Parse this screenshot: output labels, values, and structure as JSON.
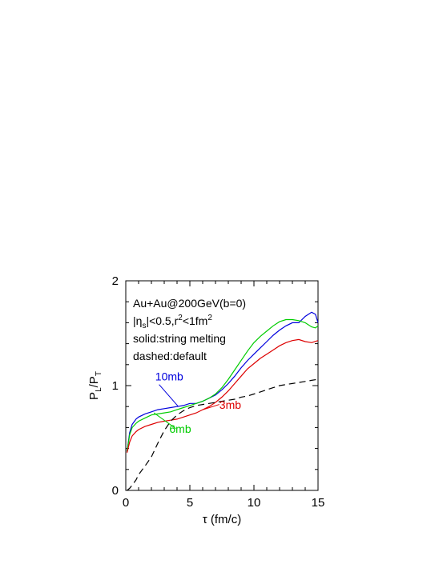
{
  "chart_data": {
    "type": "line",
    "xlabel": "τ (fm/c)",
    "ylabel_main": "P",
    "ylabel_sub1": "L",
    "ylabel_sep": "/P",
    "ylabel_sub2": "T",
    "xlim": [
      0,
      15
    ],
    "ylim": [
      0,
      2
    ],
    "x_ticks": [
      0,
      5,
      10,
      15
    ],
    "y_ticks": [
      0,
      1,
      2
    ],
    "grid": false,
    "annotations": {
      "line1": "Au+Au@200GeV(b=0)",
      "line2_pre": "|η",
      "line2_sub": "s",
      "line2_mid": "|<0.5,r",
      "line2_sup": "2",
      "line2_mid2": "<1fm",
      "line2_sup2": "2",
      "line3": "solid:string melting",
      "line4": "dashed:default"
    },
    "series": [
      {
        "name": "10mb",
        "color": "#0000dd",
        "dash": false,
        "label_pos": [
          2.3,
          1.05
        ],
        "x": [
          0.1,
          0.3,
          0.5,
          0.8,
          1.0,
          1.5,
          2,
          2.5,
          3,
          3.5,
          4,
          4.5,
          5,
          5.5,
          6,
          6.5,
          7,
          7.5,
          8,
          8.5,
          9,
          9.5,
          10,
          10.5,
          11,
          11.5,
          12,
          12.5,
          13,
          13.5,
          14,
          14.5,
          14.8,
          15
        ],
        "y": [
          0.37,
          0.55,
          0.63,
          0.68,
          0.7,
          0.73,
          0.75,
          0.77,
          0.78,
          0.79,
          0.8,
          0.81,
          0.83,
          0.83,
          0.85,
          0.88,
          0.91,
          0.96,
          1.02,
          1.09,
          1.17,
          1.24,
          1.3,
          1.36,
          1.42,
          1.48,
          1.53,
          1.57,
          1.6,
          1.6,
          1.66,
          1.7,
          1.68,
          1.6
        ]
      },
      {
        "name": "6mb",
        "color": "#00cc00",
        "dash": false,
        "label_pos": [
          3.4,
          0.55
        ],
        "x": [
          0.1,
          0.3,
          0.5,
          0.8,
          1.0,
          1.5,
          2,
          2.5,
          3,
          3.5,
          4,
          4.5,
          5,
          5.5,
          6,
          6.5,
          7,
          7.5,
          8,
          8.5,
          9,
          9.5,
          10,
          10.5,
          11,
          11.5,
          12,
          12.5,
          13,
          13.5,
          14,
          14.5,
          14.8,
          15
        ],
        "y": [
          0.37,
          0.53,
          0.6,
          0.64,
          0.66,
          0.69,
          0.72,
          0.73,
          0.74,
          0.75,
          0.77,
          0.79,
          0.81,
          0.83,
          0.85,
          0.88,
          0.92,
          0.98,
          1.06,
          1.15,
          1.24,
          1.33,
          1.41,
          1.47,
          1.52,
          1.57,
          1.61,
          1.63,
          1.63,
          1.62,
          1.6,
          1.56,
          1.55,
          1.57
        ]
      },
      {
        "name": "3mb",
        "color": "#dd0000",
        "dash": false,
        "label_pos": [
          7.3,
          0.78
        ],
        "x": [
          0.1,
          0.3,
          0.5,
          0.8,
          1.0,
          1.5,
          2,
          2.5,
          3,
          3.5,
          4,
          4.5,
          5,
          5.5,
          6,
          6.5,
          7,
          7.5,
          8,
          8.5,
          9,
          9.5,
          10,
          10.5,
          11,
          11.5,
          12,
          12.5,
          13,
          13.5,
          14,
          14.5,
          15
        ],
        "y": [
          0.36,
          0.46,
          0.52,
          0.56,
          0.58,
          0.61,
          0.63,
          0.65,
          0.66,
          0.67,
          0.68,
          0.7,
          0.72,
          0.74,
          0.77,
          0.8,
          0.84,
          0.89,
          0.95,
          1.02,
          1.09,
          1.16,
          1.21,
          1.26,
          1.3,
          1.34,
          1.38,
          1.41,
          1.43,
          1.44,
          1.42,
          1.41,
          1.43
        ]
      },
      {
        "name": "",
        "color": "#000000",
        "dash": true,
        "x": [
          0.1,
          0.3,
          0.5,
          0.8,
          1.0,
          1.3,
          1.6,
          2,
          2.5,
          3,
          3.5,
          4,
          4.5,
          5,
          5.5,
          6,
          6.5,
          7,
          7.5,
          8,
          8.5,
          9,
          9.5,
          10,
          10.5,
          11,
          11.5,
          12,
          12.5,
          13,
          13.5,
          14,
          14.5,
          15
        ],
        "y": [
          0.0,
          0.02,
          0.05,
          0.1,
          0.15,
          0.2,
          0.25,
          0.32,
          0.45,
          0.57,
          0.66,
          0.72,
          0.76,
          0.79,
          0.81,
          0.82,
          0.83,
          0.84,
          0.85,
          0.86,
          0.87,
          0.89,
          0.9,
          0.92,
          0.94,
          0.96,
          0.98,
          1.0,
          1.01,
          1.02,
          1.03,
          1.04,
          1.05,
          1.06
        ]
      }
    ]
  }
}
